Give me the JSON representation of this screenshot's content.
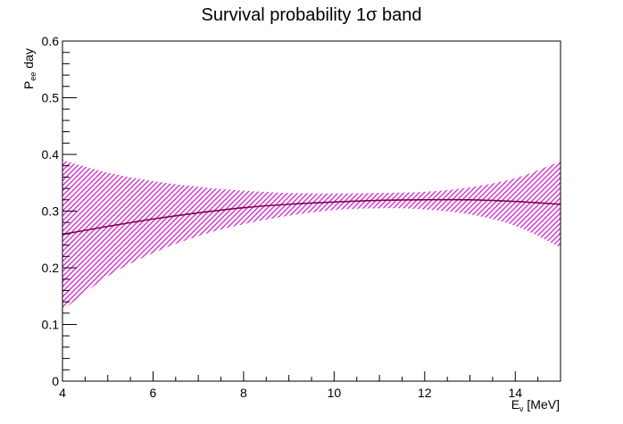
{
  "chart_data": {
    "type": "area",
    "title": "Survival probability 1σ band",
    "xlabel": {
      "main": "E",
      "sub": "ν",
      "rest": " [MeV]"
    },
    "ylabel": {
      "main": "P",
      "sub": "ee",
      "rest": " day"
    },
    "xlim": [
      4,
      15
    ],
    "ylim": [
      0,
      0.6
    ],
    "x_ticks": [
      4,
      6,
      8,
      10,
      12,
      14
    ],
    "x_tick_labels": [
      "4",
      "6",
      "8",
      "10",
      "12",
      "14"
    ],
    "y_ticks": [
      0,
      0.1,
      0.2,
      0.3,
      0.4,
      0.5,
      0.6
    ],
    "y_tick_labels": [
      "0",
      "0.1",
      "0.2",
      "0.3",
      "0.4",
      "0.5",
      "0.6"
    ],
    "grid": false,
    "legend": "none",
    "series": [
      {
        "kind": "central",
        "color": "#800040",
        "x": [
          4,
          5,
          6,
          7,
          8,
          9,
          10,
          11,
          12,
          13,
          14,
          15
        ],
        "y": [
          0.259,
          0.273,
          0.286,
          0.297,
          0.306,
          0.312,
          0.316,
          0.319,
          0.32,
          0.32,
          0.317,
          0.312
        ]
      },
      {
        "kind": "band",
        "color": "#d020d0",
        "x": [
          4,
          5,
          6,
          7,
          8,
          9,
          10,
          11,
          12,
          13,
          14,
          15
        ],
        "upper": [
          0.39,
          0.368,
          0.353,
          0.343,
          0.336,
          0.332,
          0.331,
          0.332,
          0.334,
          0.342,
          0.358,
          0.388
        ],
        "lower": [
          0.125,
          0.185,
          0.226,
          0.256,
          0.277,
          0.292,
          0.302,
          0.305,
          0.303,
          0.294,
          0.274,
          0.236
        ]
      }
    ]
  }
}
